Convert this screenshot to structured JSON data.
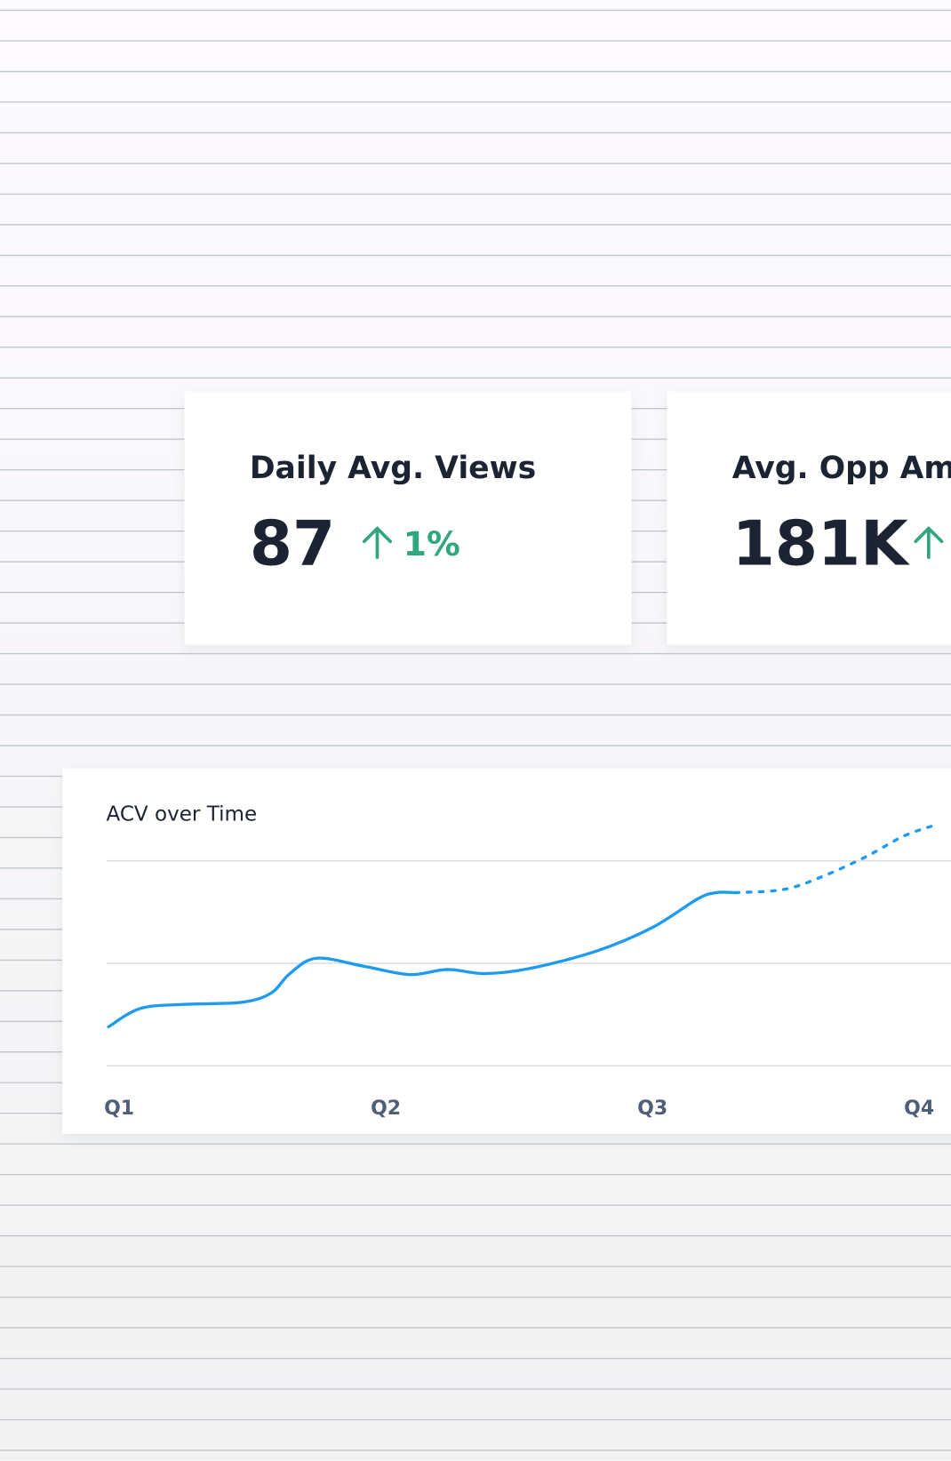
{
  "cards": [
    {
      "title": "Daily Avg. Views",
      "value": "87",
      "change": "1%"
    },
    {
      "title": "Avg. Opp Amt.",
      "value": "181K"
    }
  ],
  "chart_data": {
    "type": "line",
    "title": "ACV over Time",
    "xlim": [
      0.96,
      4.06
    ],
    "xticks": [
      {
        "value": 1,
        "label": "Q1"
      },
      {
        "value": 2,
        "label": "Q2"
      },
      {
        "value": 3,
        "label": "Q3"
      },
      {
        "value": 4,
        "label": "Q4"
      }
    ],
    "ylim": [
      0,
      2
    ],
    "yticks": [
      0,
      1,
      2
    ],
    "grid": true,
    "series": [
      {
        "color": "#1e9bf0",
        "style": "solid",
        "x": [
          0.96,
          1.08,
          1.25,
          1.46,
          1.57,
          1.64,
          1.74,
          1.92,
          2.09,
          2.23,
          2.37,
          2.54,
          2.79,
          3.0,
          3.17,
          3.24,
          3.31
        ],
        "values": [
          0.38,
          0.56,
          0.6,
          0.62,
          0.71,
          0.9,
          1.05,
          0.97,
          0.89,
          0.94,
          0.9,
          0.95,
          1.12,
          1.35,
          1.63,
          1.69,
          1.69
        ]
      },
      {
        "color": "#1e9bf0",
        "style": "dotted",
        "x": [
          3.31,
          3.49,
          3.63,
          3.8,
          3.94,
          4.06
        ],
        "values": [
          1.69,
          1.72,
          1.84,
          2.04,
          2.24,
          2.35
        ]
      }
    ]
  }
}
